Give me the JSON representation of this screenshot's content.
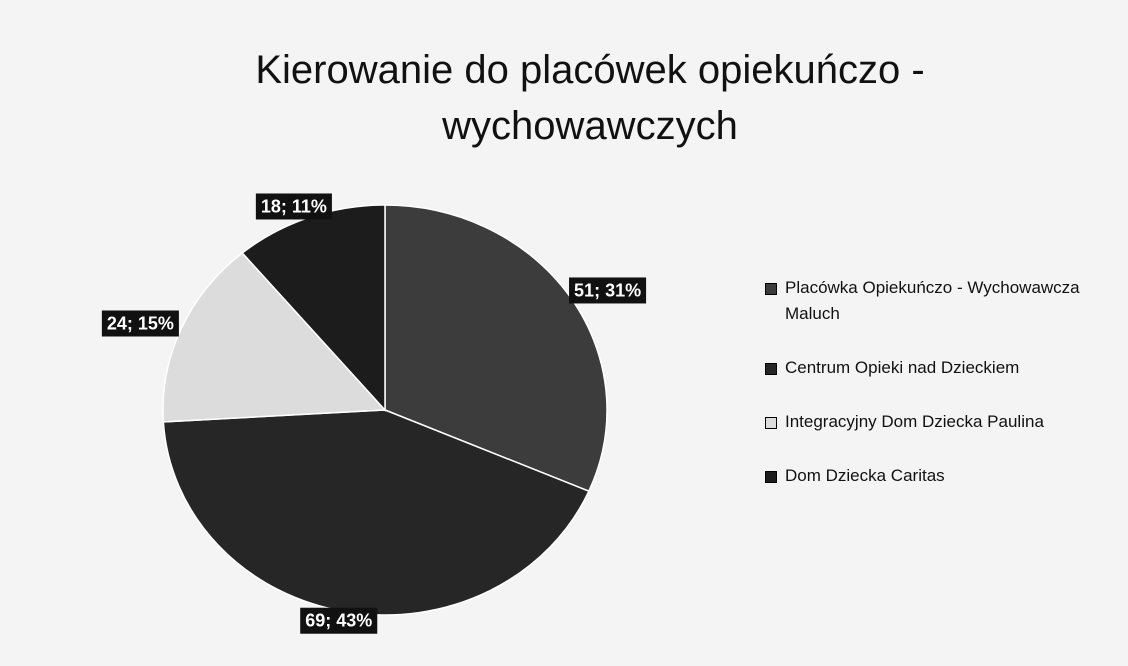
{
  "chart_data": {
    "type": "pie",
    "title": "Kierowanie do placówek opiekuńczo - wychowawczych",
    "categories": [
      "Placówka Opiekuńczo - Wychowawcza Maluch",
      "Centrum Opieki nad Dzieckiem",
      "Integracyjny Dom Dziecka Paulina",
      "Dom Dziecka Caritas"
    ],
    "values": [
      51,
      69,
      24,
      18
    ],
    "value_labels": [
      "51; 31%",
      "69; 43%",
      "24; 15%",
      "18; 11%"
    ],
    "colors": [
      "#3c3c3c",
      "#262626",
      "#dcdcdc",
      "#1c1c1c"
    ],
    "legend": "right"
  }
}
